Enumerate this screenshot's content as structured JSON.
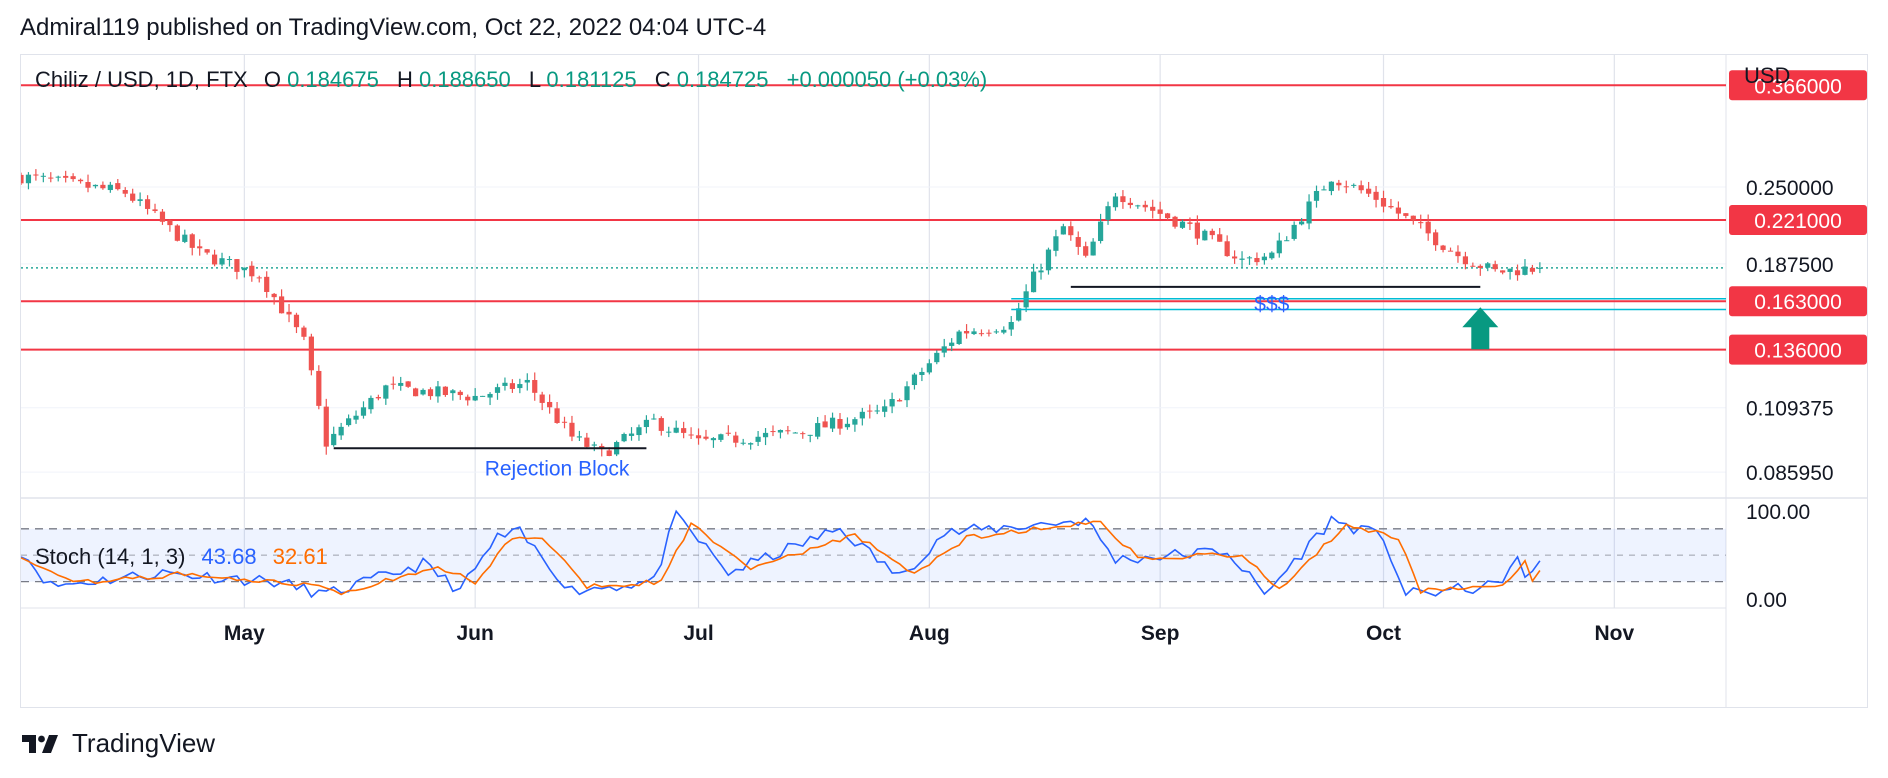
{
  "header": {
    "publisher_line": "Admiral119 published on TradingView.com, Oct 22, 2022 04:04 UTC-4"
  },
  "footer": {
    "brand": "TradingView",
    "logo_icon": "tradingview-logo-icon"
  },
  "colors": {
    "up": "#26a69a",
    "down": "#ef5350",
    "level": "#f23645",
    "stoch_k": "#2962ff",
    "stoch_d": "#ff6d00",
    "stoch_band": "#2962ff",
    "annotation": "#2962ff",
    "liquidity_line": "#00bcd4",
    "arrow": "#089981"
  },
  "chart_data": [
    {
      "type": "candlestick",
      "symbol_label": "Chiliz / USD, 1D, FTX",
      "ohlc_labels": {
        "o_label": "O",
        "o_value": "0.184675",
        "h_label": "H",
        "h_value": "0.188650",
        "l_label": "L",
        "l_value": "0.181125",
        "c_label": "C",
        "c_value": "0.184725",
        "change": "+0.000050 (+0.03%)"
      },
      "currency_label": "USD",
      "y_scale": "log",
      "ylim": [
        0.078,
        0.41
      ],
      "xlim": [
        "2022-04-01",
        "2022-11-16"
      ],
      "y_ticks": [
        "0.250000",
        "0.187500",
        "0.109375",
        "0.085950"
      ],
      "y_tick_values": [
        0.25,
        0.1875,
        0.109375,
        0.08595
      ],
      "x_ticks": [
        "May",
        "Jun",
        "Jul",
        "Aug",
        "Sep",
        "Oct",
        "Nov"
      ],
      "x_tick_dates": [
        "2022-05-01",
        "2022-06-01",
        "2022-07-01",
        "2022-08-01",
        "2022-09-01",
        "2022-10-01",
        "2022-11-01"
      ],
      "grid": true,
      "last_price": 0.184725,
      "horizontal_levels": [
        {
          "value": 0.366,
          "label": "0.366000"
        },
        {
          "value": 0.221,
          "label": "0.221000"
        },
        {
          "value": 0.163,
          "label": "0.163000"
        },
        {
          "value": 0.136,
          "label": "0.136000"
        }
      ],
      "annotations": [
        {
          "text": "Rejection Block",
          "date": "2022-06-12",
          "price": 0.0875
        },
        {
          "text": "$$$",
          "date": "2022-09-16",
          "price": 0.162
        }
      ],
      "key_points": [
        {
          "date": "2022-04-01",
          "price": 0.26
        },
        {
          "date": "2022-04-15",
          "price": 0.245
        },
        {
          "date": "2022-04-25",
          "price": 0.195
        },
        {
          "date": "2022-05-03",
          "price": 0.18
        },
        {
          "date": "2022-05-09",
          "price": 0.14
        },
        {
          "date": "2022-05-12",
          "price": 0.096
        },
        {
          "date": "2022-05-20",
          "price": 0.118
        },
        {
          "date": "2022-06-01",
          "price": 0.114
        },
        {
          "date": "2022-06-08",
          "price": 0.12
        },
        {
          "date": "2022-06-14",
          "price": 0.098
        },
        {
          "date": "2022-06-18",
          "price": 0.092
        },
        {
          "date": "2022-06-25",
          "price": 0.104
        },
        {
          "date": "2022-07-01",
          "price": 0.096
        },
        {
          "date": "2022-07-15",
          "price": 0.1
        },
        {
          "date": "2022-07-26",
          "price": 0.108
        },
        {
          "date": "2022-08-02",
          "price": 0.133
        },
        {
          "date": "2022-08-05",
          "price": 0.145
        },
        {
          "date": "2022-08-12",
          "price": 0.15
        },
        {
          "date": "2022-08-15",
          "price": 0.178
        },
        {
          "date": "2022-08-19",
          "price": 0.215
        },
        {
          "date": "2022-08-22",
          "price": 0.19
        },
        {
          "date": "2022-08-26",
          "price": 0.245
        },
        {
          "date": "2022-09-05",
          "price": 0.215
        },
        {
          "date": "2022-09-12",
          "price": 0.19
        },
        {
          "date": "2022-09-16",
          "price": 0.194
        },
        {
          "date": "2022-09-24",
          "price": 0.26
        },
        {
          "date": "2022-09-30",
          "price": 0.24
        },
        {
          "date": "2022-10-05",
          "price": 0.218
        },
        {
          "date": "2022-10-11",
          "price": 0.194
        },
        {
          "date": "2022-10-16",
          "price": 0.182
        },
        {
          "date": "2022-10-20",
          "price": 0.184
        },
        {
          "date": "2022-10-22",
          "price": 0.184725
        }
      ]
    },
    {
      "type": "line",
      "title": "Stoch (14, 1, 3)",
      "ylim": [
        -10,
        115
      ],
      "y_ticks": [
        "100.00",
        "0.00"
      ],
      "band": [
        20,
        80
      ],
      "middle": 50,
      "series": [
        {
          "name": "43.68",
          "key_points": [
            {
              "date": "2022-04-01",
              "value": 55
            },
            {
              "date": "2022-04-05",
              "value": 15
            },
            {
              "date": "2022-04-20",
              "value": 30
            },
            {
              "date": "2022-05-05",
              "value": 20
            },
            {
              "date": "2022-05-12",
              "value": 5
            },
            {
              "date": "2022-05-25",
              "value": 40
            },
            {
              "date": "2022-05-30",
              "value": 10
            },
            {
              "date": "2022-06-04",
              "value": 70
            },
            {
              "date": "2022-06-07",
              "value": 75
            },
            {
              "date": "2022-06-14",
              "value": 10
            },
            {
              "date": "2022-06-25",
              "value": 20
            },
            {
              "date": "2022-06-28",
              "value": 95
            },
            {
              "date": "2022-07-05",
              "value": 30
            },
            {
              "date": "2022-07-20",
              "value": 80
            },
            {
              "date": "2022-07-28",
              "value": 25
            },
            {
              "date": "2022-08-03",
              "value": 75
            },
            {
              "date": "2022-08-22",
              "value": 90
            },
            {
              "date": "2022-08-26",
              "value": 45
            },
            {
              "date": "2022-09-10",
              "value": 55
            },
            {
              "date": "2022-09-15",
              "value": 5
            },
            {
              "date": "2022-09-24",
              "value": 90
            },
            {
              "date": "2022-10-01",
              "value": 70
            },
            {
              "date": "2022-10-04",
              "value": 5
            },
            {
              "date": "2022-10-16",
              "value": 15
            },
            {
              "date": "2022-10-19",
              "value": 45
            },
            {
              "date": "2022-10-20",
              "value": 20
            },
            {
              "date": "2022-10-22",
              "value": 43.68
            }
          ]
        },
        {
          "name": "32.61",
          "key_points": [
            {
              "date": "2022-04-01",
              "value": 50
            },
            {
              "date": "2022-04-08",
              "value": 18
            },
            {
              "date": "2022-04-22",
              "value": 28
            },
            {
              "date": "2022-05-08",
              "value": 18
            },
            {
              "date": "2022-05-14",
              "value": 8
            },
            {
              "date": "2022-05-27",
              "value": 35
            },
            {
              "date": "2022-06-01",
              "value": 20
            },
            {
              "date": "2022-06-06",
              "value": 70
            },
            {
              "date": "2022-06-10",
              "value": 72
            },
            {
              "date": "2022-06-16",
              "value": 15
            },
            {
              "date": "2022-06-26",
              "value": 20
            },
            {
              "date": "2022-06-30",
              "value": 85
            },
            {
              "date": "2022-07-08",
              "value": 35
            },
            {
              "date": "2022-07-22",
              "value": 72
            },
            {
              "date": "2022-07-30",
              "value": 30
            },
            {
              "date": "2022-08-06",
              "value": 70
            },
            {
              "date": "2022-08-24",
              "value": 88
            },
            {
              "date": "2022-08-29",
              "value": 48
            },
            {
              "date": "2022-09-12",
              "value": 50
            },
            {
              "date": "2022-09-17",
              "value": 12
            },
            {
              "date": "2022-09-26",
              "value": 85
            },
            {
              "date": "2022-10-03",
              "value": 68
            },
            {
              "date": "2022-10-06",
              "value": 10
            },
            {
              "date": "2022-10-17",
              "value": 18
            },
            {
              "date": "2022-10-20",
              "value": 42
            },
            {
              "date": "2022-10-21",
              "value": 22
            },
            {
              "date": "2022-10-22",
              "value": 32.61
            }
          ]
        }
      ]
    }
  ]
}
